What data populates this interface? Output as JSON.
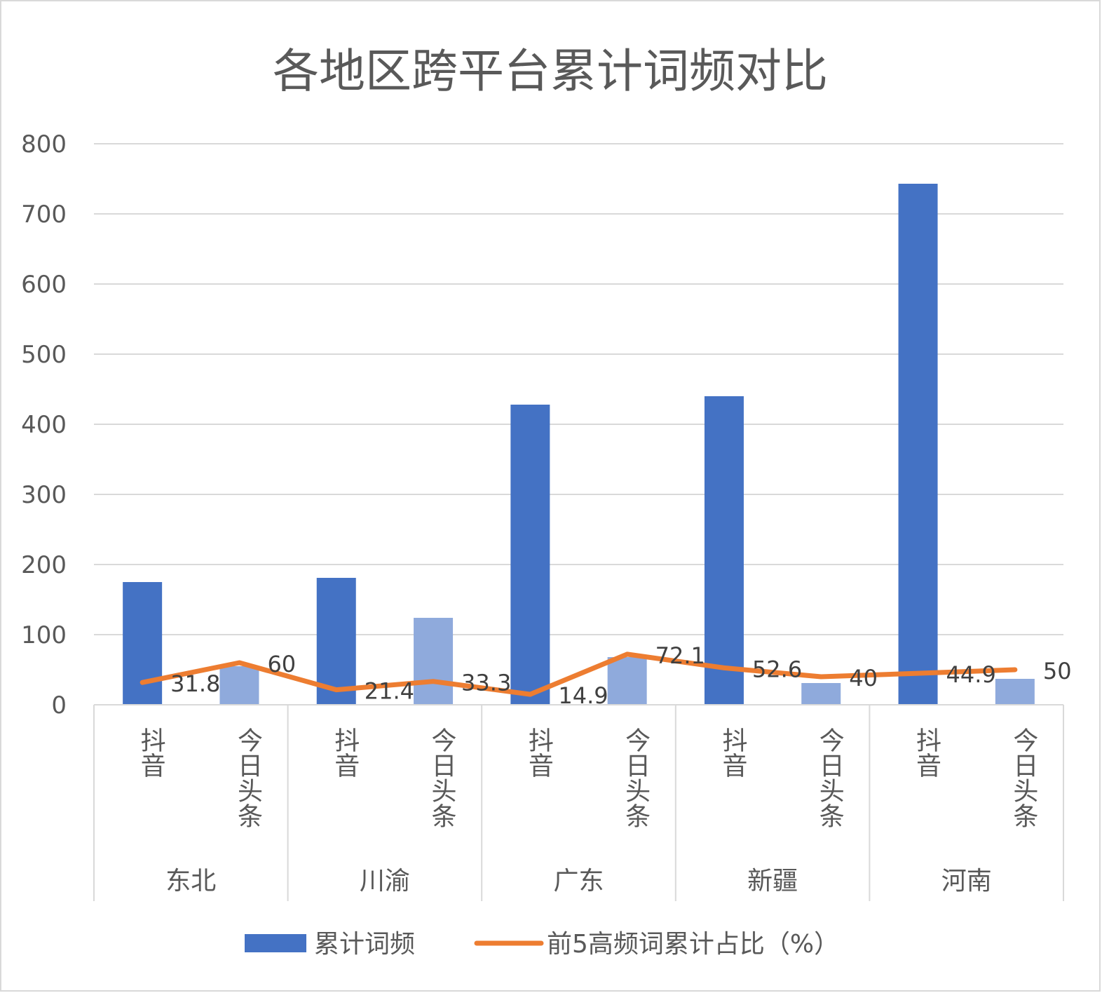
{
  "chart_data": {
    "type": "bar",
    "title": "各地区跨平台累计词频对比",
    "groups": [
      "东北",
      "川渝",
      "广东",
      "新疆",
      "河南"
    ],
    "platforms": [
      "抖音",
      "今日头条"
    ],
    "ylim": [
      0,
      800
    ],
    "y_ticks": [
      "0",
      "100",
      "200",
      "300",
      "400",
      "500",
      "600",
      "700",
      "800"
    ],
    "grid": true,
    "legend_position": "bottom",
    "series": [
      {
        "name": "累计词频",
        "type": "bar",
        "color": "#4472C4",
        "light_color": "#8FAADC",
        "values": [
          175,
          55,
          181,
          124,
          428,
          68,
          440,
          31,
          743,
          37
        ]
      },
      {
        "name": "前5高频词累计占比（%）",
        "type": "line",
        "color": "#ED7D31",
        "values": [
          31.8,
          60,
          21.4,
          33.3,
          14.9,
          72.1,
          52.6,
          40,
          44.9,
          50
        ],
        "labels": [
          "31.8",
          "60",
          "21.4",
          "33.3",
          "14.9",
          "72.1",
          "52.6",
          "40",
          "44.9",
          "50"
        ]
      }
    ]
  }
}
